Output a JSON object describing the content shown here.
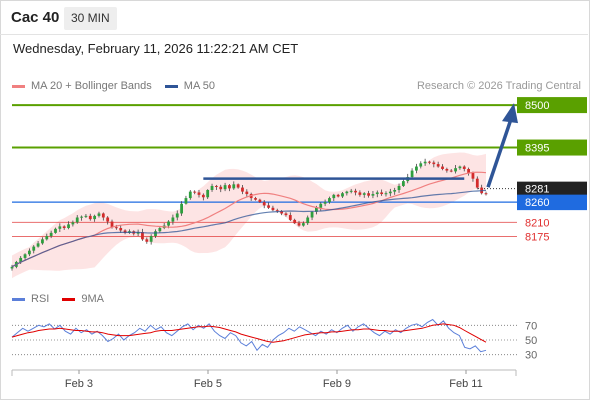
{
  "header": {
    "symbol": "Cac 40",
    "interval": "30 MIN"
  },
  "timestamp": "Wednesday, February 11, 2026 11:22:21 AM CET",
  "legend_main": [
    {
      "label": "MA 20 + Bollinger Bands",
      "color": "#f08080"
    },
    {
      "label": "MA 50",
      "color": "#2f5597"
    }
  ],
  "credit": "Research © 2026 Trading Central",
  "legend_rsi": [
    {
      "label": "RSI",
      "color": "#5b7fd9"
    },
    {
      "label": "9MA",
      "color": "#e00000"
    }
  ],
  "chart_data": [
    {
      "type": "candlestick",
      "x_ticks": [
        "Feb 3",
        "Feb 5",
        "Feb 9",
        "Feb 11"
      ],
      "ylim": [
        8060,
        8520
      ],
      "current_price": {
        "label": "8281",
        "value": 8281
      },
      "levels": [
        {
          "value": 8500,
          "label": "8500",
          "color": "#5aa000",
          "kind": "target"
        },
        {
          "value": 8395,
          "label": "8395",
          "color": "#5aa000",
          "kind": "resistance"
        },
        {
          "value": 8260,
          "label": "8260",
          "color": "#1f6be0",
          "kind": "pivot"
        },
        {
          "value": 8210,
          "label": "8210",
          "color": "#e03030",
          "kind": "support"
        },
        {
          "value": 8175,
          "label": "8175",
          "color": "#e03030",
          "kind": "support"
        }
      ],
      "close_series": [
        8100,
        8112,
        8122,
        8131,
        8140,
        8150,
        8158,
        8168,
        8176,
        8184,
        8194,
        8200,
        8196,
        8205,
        8210,
        8222,
        8224,
        8226,
        8218,
        8226,
        8232,
        8222,
        8212,
        8198,
        8196,
        8190,
        8184,
        8188,
        8182,
        8186,
        8168,
        8162,
        8176,
        8188,
        8196,
        8202,
        8212,
        8222,
        8232,
        8256,
        8270,
        8286,
        8284,
        8278,
        8272,
        8290,
        8300,
        8298,
        8292,
        8302,
        8294,
        8304,
        8296,
        8286,
        8280,
        8270,
        8266,
        8260,
        8252,
        8246,
        8240,
        8238,
        8232,
        8228,
        8216,
        8208,
        8202,
        8208,
        8222,
        8236,
        8246,
        8256,
        8260,
        8270,
        8278,
        8274,
        8282,
        8286,
        8288,
        8284,
        8278,
        8282,
        8276,
        8280,
        8284,
        8280,
        8282,
        8286,
        8290,
        8300,
        8312,
        8322,
        8338,
        8348,
        8356,
        8360,
        8358,
        8354,
        8348,
        8342,
        8338,
        8336,
        8344,
        8348,
        8342,
        8332,
        8318,
        8296,
        8282,
        8281
      ],
      "resistance_segment": {
        "value": 8318,
        "label": ""
      },
      "forecast_arrow": {
        "from": 8282,
        "to": 8500
      }
    },
    {
      "type": "line",
      "name": "RSI",
      "yticks": [
        30,
        50,
        70
      ],
      "ylim": [
        20,
        80
      ],
      "series": [
        {
          "name": "RSI",
          "values": [
            54,
            60,
            66,
            62,
            66,
            70,
            68,
            72,
            65,
            70,
            62,
            58,
            66,
            60,
            64,
            58,
            62,
            56,
            48,
            52,
            58,
            50,
            56,
            60,
            66,
            62,
            70,
            64,
            68,
            60,
            56,
            62,
            68,
            72,
            64,
            70,
            66,
            72,
            62,
            56,
            52,
            60,
            56,
            46,
            42,
            48,
            36,
            44,
            40,
            50,
            56,
            60,
            66,
            62,
            68,
            64,
            60,
            56,
            62,
            58,
            64,
            60,
            66,
            70,
            62,
            68,
            72,
            66,
            60,
            56,
            62,
            58,
            64,
            60,
            66,
            70,
            72,
            68,
            74,
            78,
            70,
            76,
            66,
            60,
            56,
            40,
            38,
            42,
            34,
            36
          ]
        },
        {
          "name": "9MA",
          "values": [
            54,
            56,
            58,
            60,
            61,
            63,
            64,
            65,
            65,
            66,
            65,
            64,
            63,
            63,
            62,
            61,
            61,
            60,
            58,
            57,
            56,
            56,
            56,
            57,
            58,
            59,
            60,
            62,
            63,
            63,
            63,
            64,
            65,
            66,
            67,
            68,
            68,
            69,
            68,
            67,
            65,
            63,
            61,
            58,
            56,
            54,
            52,
            50,
            48,
            47,
            48,
            49,
            51,
            53,
            55,
            57,
            58,
            59,
            60,
            60,
            61,
            61,
            62,
            63,
            64,
            64,
            65,
            65,
            64,
            63,
            63,
            62,
            62,
            62,
            63,
            64,
            65,
            66,
            68,
            70,
            71,
            72,
            71,
            70,
            67,
            63,
            59,
            55,
            51,
            47
          ]
        }
      ]
    }
  ]
}
